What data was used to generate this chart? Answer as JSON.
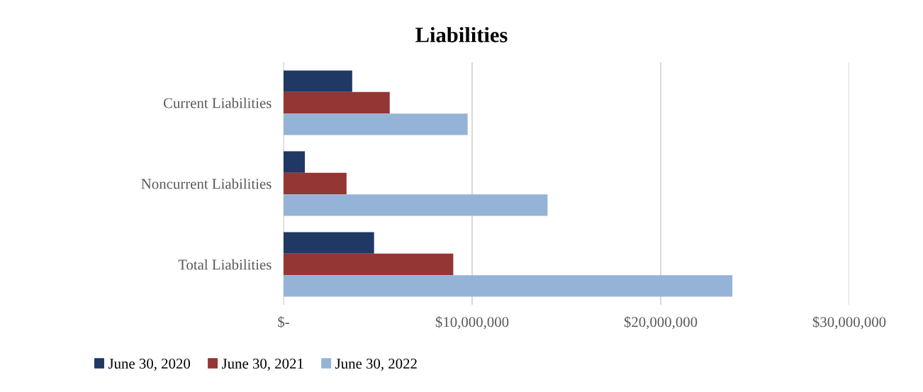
{
  "chart_data": {
    "type": "bar",
    "orientation": "horizontal",
    "title": "Liabilities",
    "categories": [
      "Current Liabilities",
      "Noncurrent Liabilities",
      "Total Liabilities"
    ],
    "series": [
      {
        "name": "June 30, 2020",
        "color": "#1f3864",
        "values": [
          3640000,
          1130000,
          4800000
        ]
      },
      {
        "name": "June 30, 2021",
        "color": "#943634",
        "values": [
          5630000,
          3340000,
          9000000
        ]
      },
      {
        "name": "June 30, 2022",
        "color": "#95b3d7",
        "values": [
          9760000,
          14000000,
          23800000
        ]
      }
    ],
    "xlim": [
      0,
      30000000
    ],
    "xticks": [
      {
        "value": 0,
        "label": "$-"
      },
      {
        "value": 10000000,
        "label": "$10,000,000"
      },
      {
        "value": 20000000,
        "label": "$20,000,000"
      },
      {
        "value": 30000000,
        "label": "$30,000,000"
      }
    ],
    "grid": "x",
    "legend": "bottom left"
  }
}
